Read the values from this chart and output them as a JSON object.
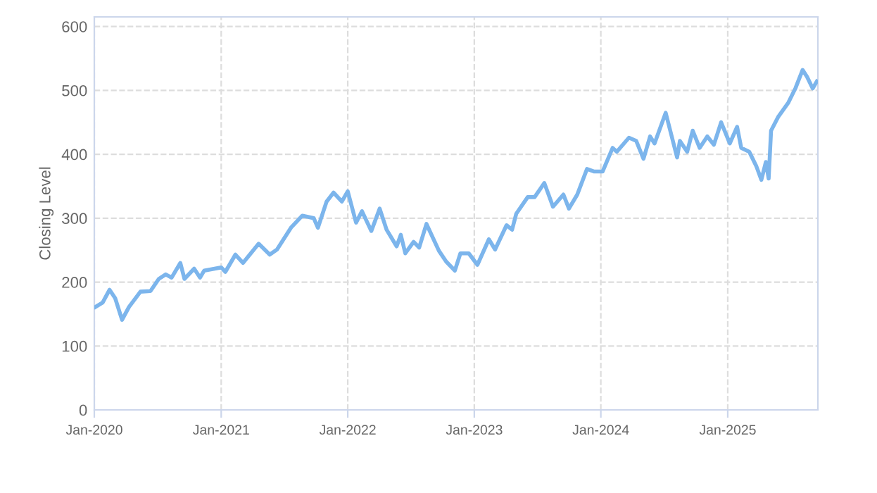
{
  "chart_data": {
    "type": "line",
    "ylabel": "Closing Level",
    "color": "#7cb5ec",
    "grid": true,
    "line_style": "solid",
    "marker": "none",
    "xlim": [
      "2020-01-01",
      "2025-09-18"
    ],
    "ylim": [
      0,
      615
    ],
    "yticks": [
      0,
      100,
      200,
      300,
      400,
      500,
      600
    ],
    "xticks": [
      {
        "value": "2020-01-01",
        "label": "Jan-2020"
      },
      {
        "value": "2021-01-01",
        "label": "Jan-2021"
      },
      {
        "value": "2022-01-01",
        "label": "Jan-2022"
      },
      {
        "value": "2023-01-01",
        "label": "Jan-2023"
      },
      {
        "value": "2024-01-01",
        "label": "Jan-2024"
      },
      {
        "value": "2025-01-01",
        "label": "Jan-2025"
      }
    ],
    "x": [
      "2020-01-04",
      "2020-01-25",
      "2020-02-14",
      "2020-03-01",
      "2020-03-21",
      "2020-04-10",
      "2020-05-13",
      "2020-06-11",
      "2020-07-05",
      "2020-07-25",
      "2020-08-11",
      "2020-09-05",
      "2020-09-17",
      "2020-10-15",
      "2020-11-01",
      "2020-11-13",
      "2021-01-01",
      "2021-01-13",
      "2021-02-11",
      "2021-03-05",
      "2021-04-19",
      "2021-05-21",
      "2021-06-11",
      "2021-07-21",
      "2021-08-23",
      "2021-09-25",
      "2021-10-07",
      "2021-11-01",
      "2021-11-21",
      "2021-12-15",
      "2022-01-01",
      "2022-01-25",
      "2022-02-11",
      "2022-03-10",
      "2022-04-03",
      "2022-04-23",
      "2022-05-22",
      "2022-06-03",
      "2022-06-16",
      "2022-07-10",
      "2022-07-26",
      "2022-08-16",
      "2022-09-21",
      "2022-10-12",
      "2022-11-06",
      "2022-11-22",
      "2022-12-16",
      "2023-01-10",
      "2023-02-12",
      "2023-03-02",
      "2023-04-04",
      "2023-04-20",
      "2023-05-02",
      "2023-06-04",
      "2023-06-24",
      "2023-07-22",
      "2023-08-16",
      "2023-09-15",
      "2023-10-01",
      "2023-10-25",
      "2023-11-22",
      "2023-12-13",
      "2024-01-06",
      "2024-02-04",
      "2024-02-16",
      "2024-03-22",
      "2024-04-12",
      "2024-05-03",
      "2024-05-22",
      "2024-06-04",
      "2024-07-06",
      "2024-08-08",
      "2024-08-16",
      "2024-09-06",
      "2024-09-22",
      "2024-10-12",
      "2024-11-03",
      "2024-11-22",
      "2024-12-13",
      "2025-01-07",
      "2025-01-28",
      "2025-02-09",
      "2025-03-04",
      "2025-03-24",
      "2025-04-08",
      "2025-04-21",
      "2025-04-29",
      "2025-05-06",
      "2025-05-27",
      "2025-06-25",
      "2025-07-15",
      "2025-08-05",
      "2025-08-18",
      "2025-09-03",
      "2025-09-15"
    ],
    "values": [
      161,
      168,
      188,
      175,
      141,
      161,
      185,
      186,
      205,
      212,
      207,
      230,
      205,
      221,
      207,
      218,
      223,
      216,
      243,
      230,
      260,
      243,
      251,
      285,
      304,
      300,
      285,
      326,
      340,
      326,
      342,
      293,
      311,
      280,
      315,
      282,
      256,
      274,
      245,
      263,
      254,
      291,
      249,
      232,
      218,
      245,
      245,
      227,
      267,
      251,
      289,
      282,
      307,
      333,
      333,
      355,
      318,
      337,
      315,
      337,
      377,
      373,
      373,
      410,
      404,
      426,
      421,
      393,
      428,
      417,
      465,
      395,
      421,
      404,
      437,
      410,
      428,
      415,
      450,
      417,
      443,
      410,
      404,
      382,
      360,
      388,
      362,
      437,
      459,
      481,
      503,
      532,
      521,
      503,
      514
    ]
  }
}
